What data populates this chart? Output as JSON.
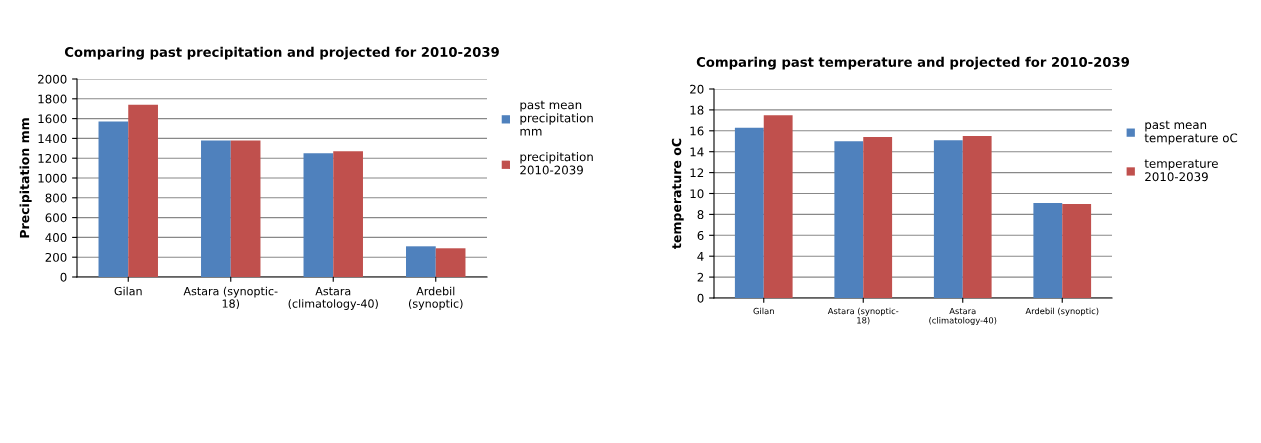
{
  "chart_data": [
    {
      "type": "bar",
      "title": "Comparing past precipitation and projected for 2010-2039",
      "ylabel": "Precipitation mm",
      "categories": [
        "Gilan",
        "Astara (synoptic-\n18)",
        "Astara\n(climatology-40)",
        "Ardebil\n(synoptic)"
      ],
      "series": [
        {
          "name": "past mean\nprecipitation\nmm",
          "color": "#4f81bd",
          "values": [
            1570,
            1380,
            1250,
            310
          ]
        },
        {
          "name": "precipitation\n2010-2039",
          "color": "#c0504d",
          "values": [
            1740,
            1380,
            1270,
            290
          ]
        }
      ],
      "ylim": [
        0,
        2000
      ],
      "yticks": [
        0,
        200,
        400,
        600,
        800,
        1000,
        1200,
        1400,
        1600,
        1800,
        2000
      ],
      "grid": "y",
      "legend": "right"
    },
    {
      "type": "bar",
      "title": "Comparing past temperature and projected for 2010-2039",
      "ylabel": "temperature oC",
      "categories": [
        "Gilan",
        "Astara (synoptic-\n18)",
        "Astara\n(climatology-40)",
        "Ardebil (synoptic)"
      ],
      "series": [
        {
          "name": "past mean\ntemperature oC",
          "color": "#4f81bd",
          "values": [
            16.3,
            15.0,
            15.1,
            9.1
          ]
        },
        {
          "name": "temperature\n2010-2039",
          "color": "#c0504d",
          "values": [
            17.5,
            15.4,
            15.5,
            9.0
          ]
        }
      ],
      "ylim": [
        0,
        20
      ],
      "yticks": [
        0,
        2,
        4,
        6,
        8,
        10,
        12,
        14,
        16,
        18,
        20
      ],
      "grid": "y",
      "legend": "right"
    }
  ]
}
